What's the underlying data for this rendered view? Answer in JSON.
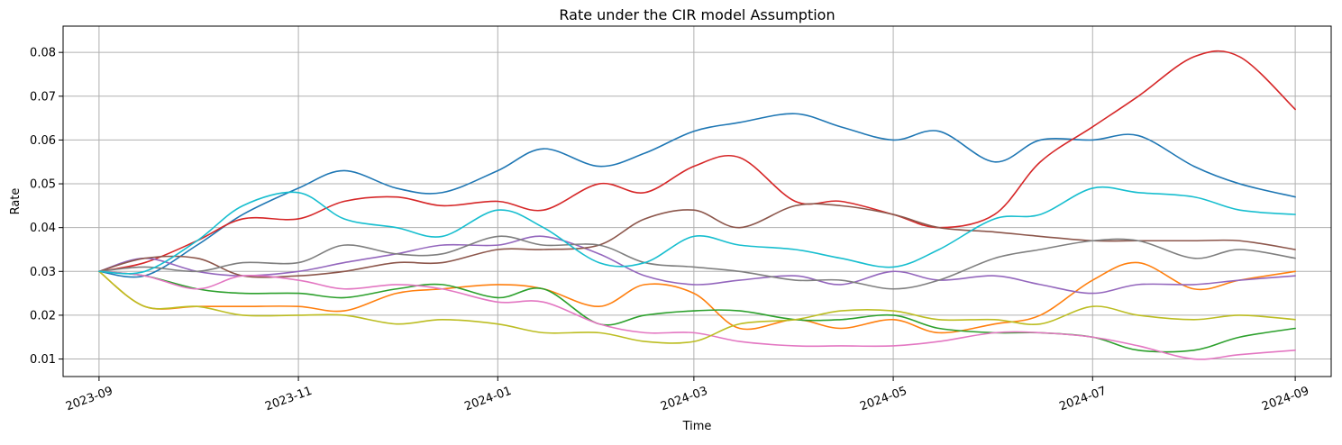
{
  "chart_data": {
    "type": "line",
    "title": "Rate under the CIR model Assumption",
    "xlabel": "Time",
    "ylabel": "Rate",
    "x_type": "date",
    "xlim": [
      "2023-08-21",
      "2024-09-12"
    ],
    "ylim": [
      0.006,
      0.086
    ],
    "xticks": [
      "2023-09",
      "2023-11",
      "2024-01",
      "2024-03",
      "2024-05",
      "2024-07",
      "2024-09"
    ],
    "yticks": [
      "0.01",
      "0.02",
      "0.03",
      "0.04",
      "0.05",
      "0.06",
      "0.07",
      "0.08"
    ],
    "grid": true,
    "legend": false,
    "x": [
      "2023-09-01",
      "2023-09-15",
      "2023-10-01",
      "2023-10-15",
      "2023-11-01",
      "2023-11-15",
      "2023-12-01",
      "2023-12-15",
      "2024-01-01",
      "2024-01-15",
      "2024-02-01",
      "2024-02-15",
      "2024-03-01",
      "2024-03-15",
      "2024-04-01",
      "2024-04-15",
      "2024-05-01",
      "2024-05-15",
      "2024-06-01",
      "2024-06-15",
      "2024-07-01",
      "2024-07-15",
      "2024-08-01",
      "2024-08-15",
      "2024-09-01"
    ],
    "series": [
      {
        "color": "#1f77b4",
        "values": [
          0.03,
          0.029,
          0.036,
          0.043,
          0.049,
          0.053,
          0.049,
          0.048,
          0.053,
          0.058,
          0.054,
          0.057,
          0.062,
          0.064,
          0.066,
          0.063,
          0.06,
          0.062,
          0.055,
          0.06,
          0.06,
          0.061,
          0.054,
          0.05,
          0.047
        ]
      },
      {
        "color": "#ff7f0e",
        "values": [
          0.03,
          0.022,
          0.022,
          0.022,
          0.022,
          0.021,
          0.025,
          0.026,
          0.027,
          0.026,
          0.022,
          0.027,
          0.025,
          0.017,
          0.019,
          0.017,
          0.019,
          0.016,
          0.018,
          0.02,
          0.028,
          0.032,
          0.026,
          0.028,
          0.03
        ]
      },
      {
        "color": "#2ca02c",
        "values": [
          0.03,
          0.029,
          0.026,
          0.025,
          0.025,
          0.024,
          0.026,
          0.027,
          0.024,
          0.026,
          0.018,
          0.02,
          0.021,
          0.021,
          0.019,
          0.019,
          0.02,
          0.017,
          0.016,
          0.016,
          0.015,
          0.012,
          0.012,
          0.015,
          0.017
        ]
      },
      {
        "color": "#d62728",
        "values": [
          0.03,
          0.032,
          0.037,
          0.042,
          0.042,
          0.046,
          0.047,
          0.045,
          0.046,
          0.044,
          0.05,
          0.048,
          0.054,
          0.056,
          0.046,
          0.046,
          0.043,
          0.04,
          0.043,
          0.055,
          0.063,
          0.07,
          0.079,
          0.079,
          0.067
        ]
      },
      {
        "color": "#9467bd",
        "values": [
          0.03,
          0.033,
          0.03,
          0.029,
          0.03,
          0.032,
          0.034,
          0.036,
          0.036,
          0.038,
          0.034,
          0.029,
          0.027,
          0.028,
          0.029,
          0.027,
          0.03,
          0.028,
          0.029,
          0.027,
          0.025,
          0.027,
          0.027,
          0.028,
          0.029
        ]
      },
      {
        "color": "#8c564b",
        "values": [
          0.03,
          0.033,
          0.033,
          0.029,
          0.029,
          0.03,
          0.032,
          0.032,
          0.035,
          0.035,
          0.036,
          0.042,
          0.044,
          0.04,
          0.045,
          0.045,
          0.043,
          0.04,
          0.039,
          0.038,
          0.037,
          0.037,
          0.037,
          0.037,
          0.035
        ]
      },
      {
        "color": "#e377c2",
        "values": [
          0.03,
          0.029,
          0.026,
          0.029,
          0.028,
          0.026,
          0.027,
          0.026,
          0.023,
          0.023,
          0.018,
          0.016,
          0.016,
          0.014,
          0.013,
          0.013,
          0.013,
          0.014,
          0.016,
          0.016,
          0.015,
          0.013,
          0.01,
          0.011,
          0.012
        ]
      },
      {
        "color": "#7f7f7f",
        "values": [
          0.03,
          0.031,
          0.03,
          0.032,
          0.032,
          0.036,
          0.034,
          0.034,
          0.038,
          0.036,
          0.036,
          0.032,
          0.031,
          0.03,
          0.028,
          0.028,
          0.026,
          0.028,
          0.033,
          0.035,
          0.037,
          0.037,
          0.033,
          0.035,
          0.033
        ]
      },
      {
        "color": "#bcbd22",
        "values": [
          0.03,
          0.022,
          0.022,
          0.02,
          0.02,
          0.02,
          0.018,
          0.019,
          0.018,
          0.016,
          0.016,
          0.014,
          0.014,
          0.018,
          0.019,
          0.021,
          0.021,
          0.019,
          0.019,
          0.018,
          0.022,
          0.02,
          0.019,
          0.02,
          0.019
        ]
      },
      {
        "color": "#17becf",
        "values": [
          0.03,
          0.03,
          0.037,
          0.045,
          0.048,
          0.042,
          0.04,
          0.038,
          0.044,
          0.04,
          0.032,
          0.032,
          0.038,
          0.036,
          0.035,
          0.033,
          0.031,
          0.035,
          0.042,
          0.043,
          0.049,
          0.048,
          0.047,
          0.044,
          0.043
        ]
      }
    ]
  }
}
